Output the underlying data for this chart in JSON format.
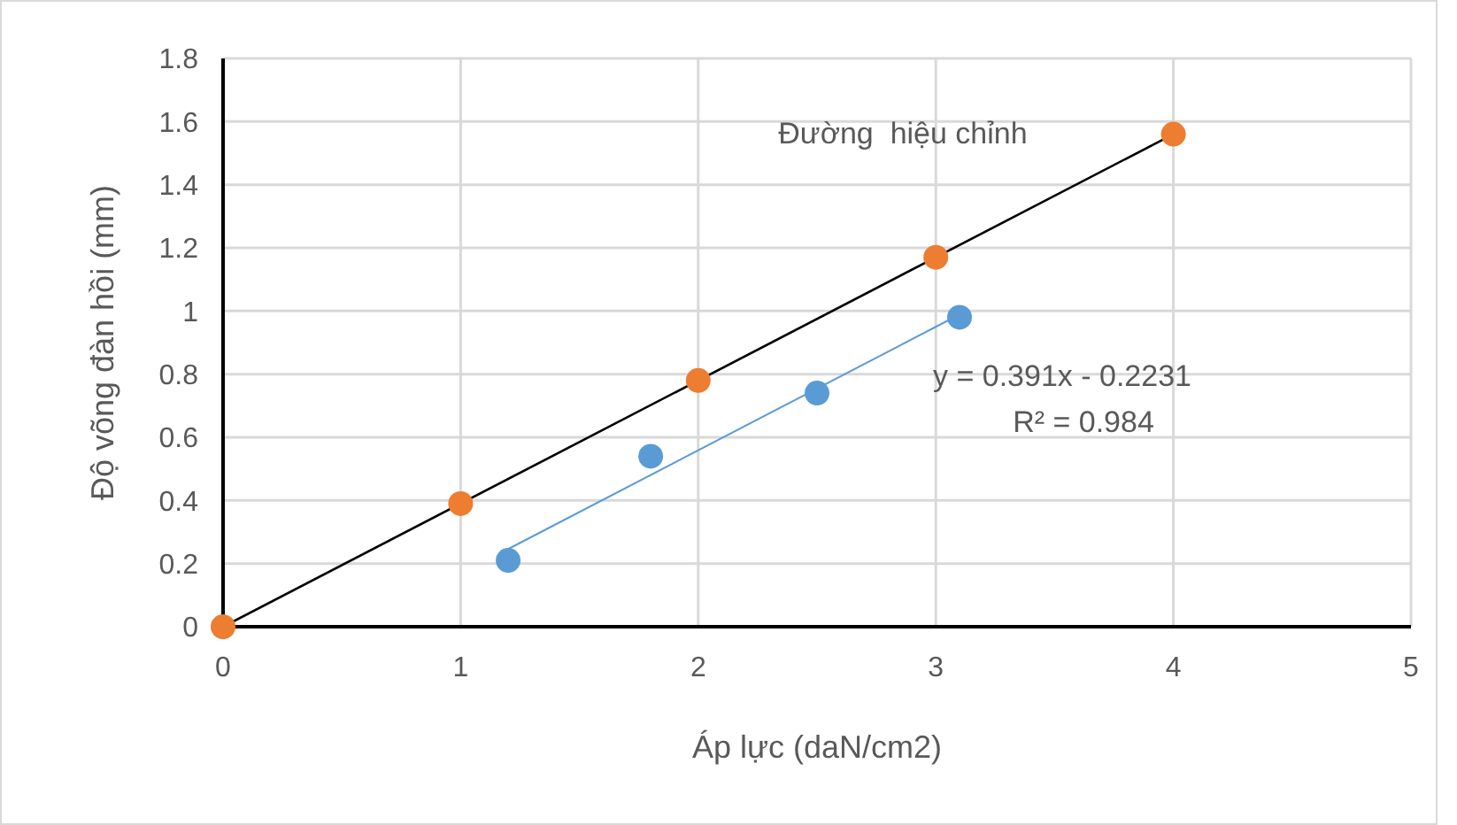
{
  "chart_data": {
    "type": "scatter",
    "xlabel": "Áp lực (daN/cm2)",
    "ylabel": "Độ võng đàn hồi (mm)",
    "xlim": [
      0,
      5
    ],
    "xticks": [
      0,
      1,
      2,
      3,
      4,
      5
    ],
    "ylim": [
      0,
      1.8
    ],
    "yticks": [
      0,
      0.2,
      0.4,
      0.6,
      0.8,
      1,
      1.2,
      1.4,
      1.6,
      1.8
    ],
    "grid": true,
    "series": [
      {
        "type": "line",
        "marker": "none",
        "color": "#000000",
        "x": [
          0,
          4
        ],
        "values": [
          0,
          1.56
        ]
      },
      {
        "type": "line",
        "marker": "none",
        "color": "#5b9bd5",
        "x": [
          1.2,
          3.1
        ],
        "values": [
          0.246,
          0.989
        ]
      },
      {
        "marker": "circle",
        "color": "#ed7d31",
        "x": [
          0,
          1,
          2,
          3,
          4
        ],
        "values": [
          0,
          0.39,
          0.78,
          1.17,
          1.56
        ]
      },
      {
        "marker": "circle",
        "color": "#5b9bd5",
        "x": [
          1.2,
          1.8,
          2.5,
          3.1
        ],
        "values": [
          0.21,
          0.54,
          0.74,
          0.98
        ]
      }
    ],
    "annotations": [
      "Đường  hiệu chỉnh",
      "y = 0.391x - 0.2231",
      "R² = 0.984"
    ]
  }
}
